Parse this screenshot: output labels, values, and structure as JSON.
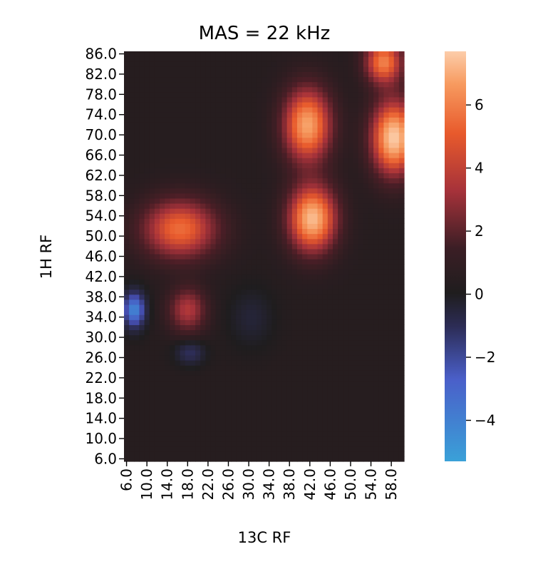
{
  "chart_data": {
    "type": "heatmap",
    "title": "MAS = 22 kHz",
    "xlabel": "13C RF",
    "ylabel": "1H RF",
    "x_tick_labels": [
      "6.0",
      "10.0",
      "14.0",
      "18.0",
      "22.0",
      "26.0",
      "30.0",
      "34.0",
      "38.0",
      "42.0",
      "46.0",
      "50.0",
      "54.0",
      "58.0"
    ],
    "y_tick_labels": [
      "86.0",
      "82.0",
      "78.0",
      "74.0",
      "70.0",
      "66.0",
      "62.0",
      "58.0",
      "54.0",
      "50.0",
      "46.0",
      "42.0",
      "38.0",
      "34.0",
      "30.0",
      "26.0",
      "22.0",
      "18.0",
      "14.0",
      "10.0",
      "6.0"
    ],
    "x_range": [
      6,
      61
    ],
    "y_range": [
      6,
      87
    ],
    "colorbar": {
      "vmin": -5.3,
      "vmax": 7.7,
      "ticks": [
        "6",
        "4",
        "2",
        "0",
        "−2",
        "−4"
      ],
      "tick_values": [
        6,
        4,
        2,
        0,
        -2,
        -4
      ],
      "colormap": "icefire",
      "center_color": "#1f1d1e"
    },
    "features": [
      {
        "x": 58.5,
        "y": 69.5,
        "value": 7.4,
        "sx": 3.0,
        "sy": 5.0
      },
      {
        "x": 41.5,
        "y": 72.0,
        "value": 6.4,
        "sx": 3.2,
        "sy": 5.0
      },
      {
        "x": 42.5,
        "y": 53.5,
        "value": 7.0,
        "sx": 3.2,
        "sy": 4.5
      },
      {
        "x": 16.5,
        "y": 51.5,
        "value": 5.0,
        "sx": 5.0,
        "sy": 4.0
      },
      {
        "x": 56.5,
        "y": 84.5,
        "value": 5.5,
        "sx": 2.5,
        "sy": 3.0
      },
      {
        "x": 7.5,
        "y": 35.5,
        "value": -5.0,
        "sx": 1.5,
        "sy": 2.5
      },
      {
        "x": 18.5,
        "y": 27.0,
        "value": -1.8,
        "sx": 2.0,
        "sy": 1.6
      },
      {
        "x": 30.5,
        "y": 34.0,
        "value": -0.9,
        "sx": 3.0,
        "sy": 4.0
      },
      {
        "x": 18.0,
        "y": 35.5,
        "value": 3.2,
        "sx": 2.5,
        "sy": 3.0
      }
    ]
  }
}
